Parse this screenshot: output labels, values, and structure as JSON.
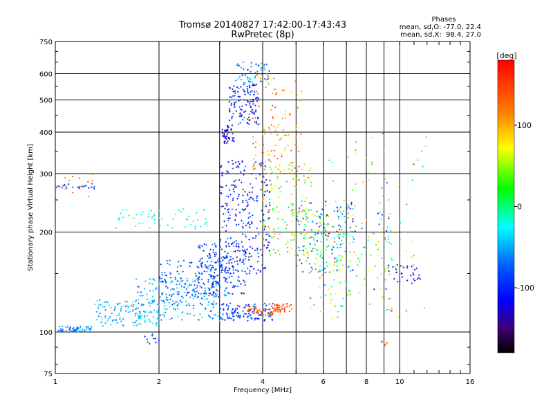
{
  "chart_data": {
    "type": "scatter",
    "title_line1": "Tromsø 20140827 17:42:00-17:43:43",
    "title_line2": "RwPretec (8p)",
    "xlabel": "Frequency [MHz]",
    "ylabel": "Stationary phase Virtual Height [km]",
    "x_scale": "log",
    "y_scale": "log",
    "xlim": [
      1,
      16
    ],
    "ylim": [
      75,
      750
    ],
    "x_ticks": [
      1,
      2,
      4,
      6,
      8,
      10,
      16
    ],
    "x_tick_labels": [
      "1",
      "2",
      "4",
      "6",
      "8",
      "10",
      "16"
    ],
    "x_minor_grid": [
      3,
      5,
      7,
      9
    ],
    "y_ticks": [
      75,
      100,
      200,
      300,
      400,
      500,
      600,
      750
    ],
    "y_tick_labels": [
      "75",
      "100",
      "200",
      "300",
      "400",
      "500",
      "600",
      "750"
    ],
    "grid": true,
    "colorbar": {
      "label": "[deg]",
      "range": [
        -180,
        180
      ],
      "ticks": [
        100,
        0,
        -100
      ],
      "tick_labels": [
        "100",
        "0",
        "-100"
      ],
      "colors": [
        "#ff0000",
        "#ff7f00",
        "#ffff00",
        "#00ff00",
        "#00ffff",
        "#0080ff",
        "#0000ff",
        "#400080",
        "#000000"
      ]
    },
    "stats": {
      "heading": "Phases",
      "o_line": "mean, sd,O: -77.0, 22.4",
      "x_line": "mean, sd,X:  98.4, 27.0"
    },
    "clusters": [
      {
        "f0": 1.02,
        "f1": 1.28,
        "h0": 100,
        "h1": 104,
        "n": 55,
        "phase": -60,
        "spread": 25
      },
      {
        "f0": 1.3,
        "f1": 2.0,
        "h0": 104,
        "h1": 125,
        "n": 130,
        "phase": -45,
        "spread": 25
      },
      {
        "f0": 1.7,
        "f1": 3.0,
        "h0": 108,
        "h1": 145,
        "n": 170,
        "phase": -55,
        "spread": 30
      },
      {
        "f0": 2.0,
        "f1": 3.2,
        "h0": 120,
        "h1": 165,
        "n": 160,
        "phase": -75,
        "spread": 30
      },
      {
        "f0": 2.6,
        "f1": 3.6,
        "h0": 130,
        "h1": 185,
        "n": 150,
        "phase": -90,
        "spread": 30
      },
      {
        "f0": 3.0,
        "f1": 4.3,
        "h0": 108,
        "h1": 122,
        "n": 110,
        "phase": -85,
        "spread": 25
      },
      {
        "f0": 3.6,
        "f1": 4.4,
        "h0": 112,
        "h1": 120,
        "n": 50,
        "phase": 140,
        "spread": 25
      },
      {
        "f0": 4.3,
        "f1": 4.9,
        "h0": 115,
        "h1": 122,
        "n": 40,
        "phase": 140,
        "spread": 20
      },
      {
        "f0": 3.0,
        "f1": 4.2,
        "h0": 150,
        "h1": 330,
        "n": 260,
        "phase": -105,
        "spread": 35
      },
      {
        "f0": 3.05,
        "f1": 3.3,
        "h0": 370,
        "h1": 420,
        "n": 45,
        "phase": -120,
        "spread": 15
      },
      {
        "f0": 3.2,
        "f1": 3.9,
        "h0": 420,
        "h1": 560,
        "n": 120,
        "phase": -100,
        "spread": 30
      },
      {
        "f0": 3.3,
        "f1": 4.2,
        "h0": 560,
        "h1": 650,
        "n": 55,
        "phase": -60,
        "spread": 40
      },
      {
        "f0": 3.7,
        "f1": 5.2,
        "h0": 300,
        "h1": 600,
        "n": 110,
        "phase": 110,
        "spread": 40
      },
      {
        "f0": 4.0,
        "f1": 5.6,
        "h0": 170,
        "h1": 320,
        "n": 160,
        "phase": 60,
        "spread": 80
      },
      {
        "f0": 5.0,
        "f1": 7.5,
        "h0": 150,
        "h1": 250,
        "n": 160,
        "phase": -40,
        "spread": 90
      },
      {
        "f0": 5.5,
        "f1": 9.5,
        "h0": 115,
        "h1": 230,
        "n": 150,
        "phase": 20,
        "spread": 100
      },
      {
        "f0": 6.2,
        "f1": 12.0,
        "h0": 110,
        "h1": 420,
        "n": 70,
        "phase": 60,
        "spread": 90
      },
      {
        "f0": 1.5,
        "f1": 2.9,
        "h0": 205,
        "h1": 235,
        "n": 55,
        "phase": -20,
        "spread": 15
      },
      {
        "f0": 1.0,
        "f1": 1.3,
        "h0": 270,
        "h1": 280,
        "n": 22,
        "phase": -90,
        "spread": 20
      },
      {
        "f0": 1.05,
        "f1": 1.3,
        "h0": 255,
        "h1": 300,
        "n": 14,
        "phase": 120,
        "spread": 30
      },
      {
        "f0": 1.8,
        "f1": 2.0,
        "h0": 92,
        "h1": 100,
        "n": 10,
        "phase": -90,
        "spread": 20
      },
      {
        "f0": 9.0,
        "f1": 11.5,
        "h0": 140,
        "h1": 160,
        "n": 30,
        "phase": -110,
        "spread": 20
      },
      {
        "f0": 8.8,
        "f1": 9.2,
        "h0": 90,
        "h1": 96,
        "n": 6,
        "phase": 150,
        "spread": 10
      }
    ]
  }
}
